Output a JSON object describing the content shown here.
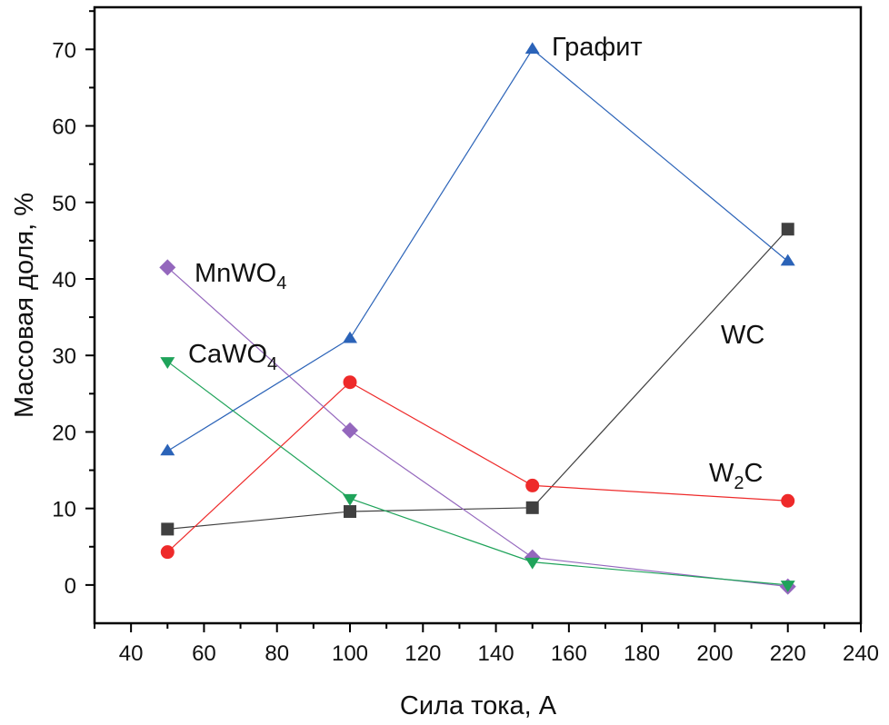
{
  "chart_data": {
    "type": "line",
    "title": "",
    "xlabel": "Сила тока, А",
    "ylabel": "Массовая доля, %",
    "xlim": [
      30,
      240
    ],
    "ylim": [
      -5,
      75.5
    ],
    "xticks": [
      40,
      60,
      80,
      100,
      120,
      140,
      160,
      180,
      200,
      220,
      240
    ],
    "yticks": [
      0,
      10,
      20,
      30,
      40,
      50,
      60,
      70
    ],
    "x_minor_step": 10,
    "y_minor_step": 5,
    "grid": false,
    "legend": "none (inline annotations)",
    "x": [
      50,
      100,
      150,
      220
    ],
    "series": [
      {
        "name": "Графит",
        "marker": "triangle-up",
        "color": "#2b63b8",
        "values": [
          17.5,
          32.2,
          70.0,
          42.3
        ]
      },
      {
        "name": "WC",
        "marker": "square",
        "color": "#404040",
        "values": [
          7.3,
          9.6,
          10.1,
          46.5
        ]
      },
      {
        "name": "W2C",
        "marker": "circle",
        "color": "#ee2a2a",
        "values": [
          4.3,
          26.5,
          13.0,
          11.0
        ]
      },
      {
        "name": "MnWO4",
        "marker": "diamond",
        "color": "#9467bd",
        "values": [
          41.5,
          20.2,
          3.6,
          -0.2
        ]
      },
      {
        "name": "CaWO4",
        "marker": "triangle-down",
        "color": "#1fa35a",
        "values": [
          29.2,
          11.3,
          3.0,
          0.0
        ]
      }
    ],
    "annotations": [
      {
        "series": "Графит",
        "text": "Графит",
        "sub": ""
      },
      {
        "series": "WC",
        "text": "WC",
        "sub": ""
      },
      {
        "series": "W2C",
        "text": "W",
        "sub": "2",
        "tail": "C"
      },
      {
        "series": "MnWO4",
        "text": "MnWO",
        "sub": "4",
        "tail": ""
      },
      {
        "series": "CaWO4",
        "text": "CaWO",
        "sub": "4",
        "tail": ""
      }
    ]
  }
}
